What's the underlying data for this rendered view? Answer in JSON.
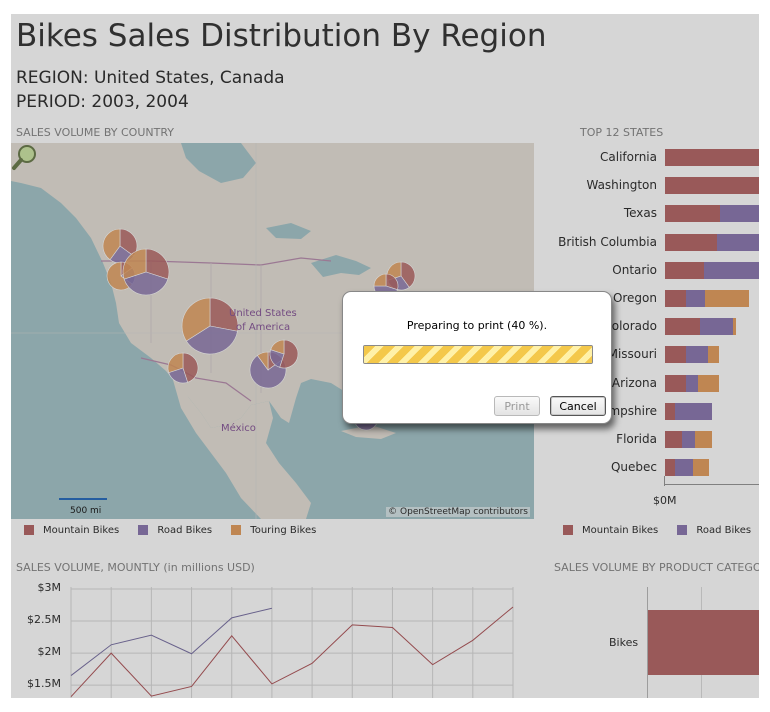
{
  "report": {
    "title": "Bikes Sales Distribution By Region",
    "region_line": "REGION: United States, Canada",
    "period_line": "PERIOD: 2003, 2004"
  },
  "sections": {
    "map_title": "SALES VOLUME BY COUNTRY",
    "states_title": "TOP 12 STATES",
    "monthly_title": "SALES VOLUME, MOUNTLY (in millions USD)",
    "category_title": "SALES VOLUME BY PRODUCT CATEGOR"
  },
  "map": {
    "labels": {
      "usa_line1": "United States",
      "usa_line2": "of America",
      "mexico": "México"
    },
    "scale_label": "500 mi",
    "attribution": "© OpenStreetMap contributors",
    "zoom_icon": "magnifier-icon"
  },
  "colors": {
    "mountain": "#b76a6a",
    "road": "#8e7bb2",
    "touring": "#e4a062",
    "line_road": "#7d74a6",
    "line_mountain": "#b15a5e"
  },
  "legend": {
    "mountain": "Mountain Bikes",
    "road": "Road Bikes",
    "touring": "Touring Bikes"
  },
  "top_states": {
    "states": [
      "California",
      "Washington",
      "Texas",
      "British Columbia",
      "Ontario",
      "Oregon",
      "Colorado",
      "Missouri",
      "Arizona",
      "Hampshire",
      "Florida",
      "Quebec"
    ],
    "x_tick": "$0M"
  },
  "monthly": {
    "y_ticks": [
      "$3M",
      "$2.5M",
      "$2M",
      "$1.5M"
    ]
  },
  "category": {
    "bar_label": "Bikes"
  },
  "print_dialog": {
    "message": "Preparing to print (40 %).",
    "progress": 0.4,
    "print_label": "Print",
    "cancel_label": "Cancel"
  },
  "chart_data": [
    {
      "type": "bar",
      "title": "TOP 12 STATES",
      "orientation": "horizontal",
      "stacked": true,
      "categories": [
        "California",
        "Washington",
        "Texas",
        "British Columbia",
        "Ontario",
        "Oregon",
        "Colorado",
        "Missouri",
        "Arizona",
        "Hampshire",
        "Florida",
        "Quebec"
      ],
      "series": [
        {
          "name": "Mountain Bikes",
          "values": [
            1.0,
            1.0,
            0.58,
            0.55,
            0.42,
            0.22,
            0.37,
            0.22,
            0.22,
            0.11,
            0.18,
            0.11
          ]
        },
        {
          "name": "Road Bikes",
          "values": [
            0.0,
            0.0,
            0.42,
            0.45,
            0.58,
            0.21,
            0.35,
            0.24,
            0.13,
            0.39,
            0.14,
            0.19
          ]
        },
        {
          "name": "Touring Bikes",
          "values": [
            0.0,
            0.0,
            0.0,
            0.0,
            0.0,
            0.46,
            0.04,
            0.11,
            0.22,
            0.0,
            0.18,
            0.17
          ]
        }
      ],
      "x_ticks": [
        "$0M"
      ]
    },
    {
      "type": "line",
      "title": "SALES VOLUME, MOUNTLY (in millions USD)",
      "y_ticks": [
        "$3M",
        "$2.5M",
        "$2M",
        "$1.5M"
      ],
      "ylim": [
        1.3,
        3.0
      ],
      "grid": true,
      "x_count": 12,
      "series": [
        {
          "values": [
            1.65,
            2.13,
            2.28,
            1.99,
            2.55,
            2.7
          ]
        },
        {
          "values": [
            1.32,
            2.0,
            1.33,
            1.48,
            2.27,
            1.52,
            1.84,
            2.44,
            2.4,
            1.82,
            2.2,
            2.72
          ]
        }
      ]
    },
    {
      "type": "bar",
      "title": "SALES VOLUME BY PRODUCT CATEGOR",
      "orientation": "horizontal",
      "categories": [
        "Bikes"
      ],
      "values": [
        1.0
      ]
    }
  ]
}
